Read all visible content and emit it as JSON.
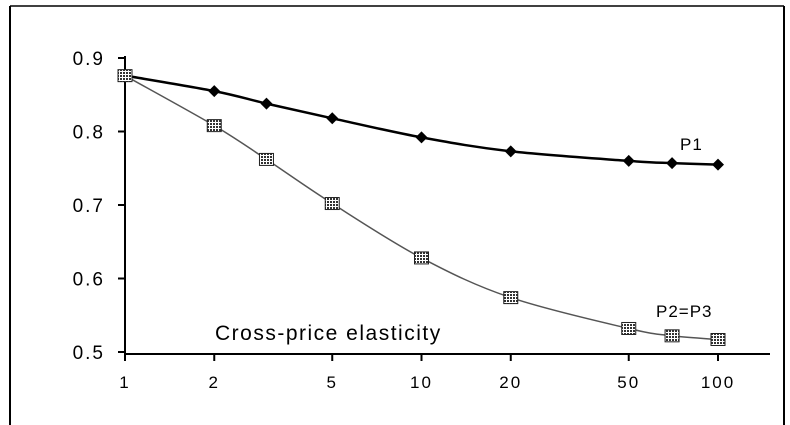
{
  "chart_data": {
    "type": "line",
    "xscale": "log",
    "x": [
      1,
      2,
      3,
      5,
      10,
      20,
      50,
      70,
      100
    ],
    "xticks": [
      1,
      2,
      5,
      10,
      20,
      50,
      100
    ],
    "xtick_labels": [
      "1",
      "2",
      "5",
      "10",
      "20",
      "50",
      "100"
    ],
    "yticks": [
      0.5,
      0.6,
      0.7,
      0.8,
      0.9
    ],
    "ytick_labels": [
      "0.5",
      "0.6",
      "0.7",
      "0.8",
      "0.9"
    ],
    "xlim": [
      1,
      100
    ],
    "ylim": [
      0.5,
      0.9
    ],
    "xlabel": "Cross-price elasticity",
    "ylabel": "",
    "grid": false,
    "series": [
      {
        "name": "P1",
        "marker": "diamond",
        "color": "#000000",
        "values": [
          0.876,
          0.855,
          0.838,
          0.818,
          0.792,
          0.773,
          0.76,
          0.757,
          0.755
        ]
      },
      {
        "name": "P2=P3",
        "marker": "hatched-square",
        "color": "#555555",
        "values": [
          0.876,
          0.808,
          0.762,
          0.702,
          0.628,
          0.574,
          0.532,
          0.522,
          0.517
        ]
      }
    ]
  }
}
